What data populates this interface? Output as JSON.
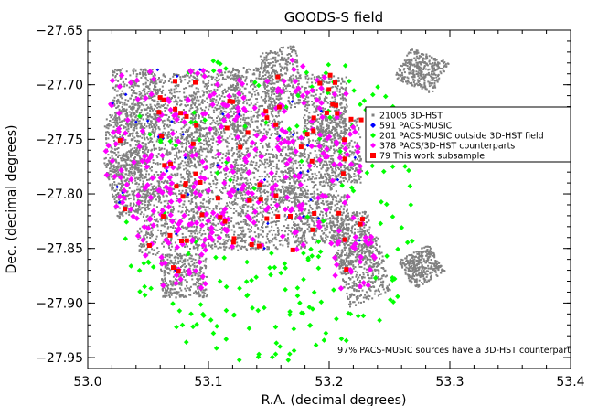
{
  "chart_data": {
    "type": "scatter",
    "title": "GOODS-S field",
    "xlabel": "R.A. (decimal degrees)",
    "ylabel": "Dec. (decimal degrees)",
    "xlim": [
      53.0,
      53.4
    ],
    "ylim": [
      -27.96,
      -27.65
    ],
    "x_reversed": false,
    "x_major_ticks": [
      53.0,
      53.1,
      53.2,
      53.3,
      53.4
    ],
    "x_tick_labels": [
      "53.0",
      "53.1",
      "53.2",
      "53.3",
      "53.4"
    ],
    "y_major_ticks": [
      -27.65,
      -27.7,
      -27.75,
      -27.8,
      -27.85,
      -27.9,
      -27.95
    ],
    "y_tick_labels": [
      "−27.65",
      "−27.70",
      "−27.75",
      "−27.80",
      "−27.85",
      "−27.90",
      "−27.95"
    ],
    "grid": false,
    "legend_position": "right",
    "series": [
      {
        "name": "21005 3D-HST",
        "color": "#808080",
        "marker": "dot",
        "count": 21005
      },
      {
        "name": "591 PACS-MUSIC",
        "color": "#0000ff",
        "marker": "diamond",
        "count": 591
      },
      {
        "name": "201 PACS-MUSIC outside 3D-HST field",
        "color": "#00ff00",
        "marker": "diamond",
        "count": 201
      },
      {
        "name": "378 PACS/3D-HST counterparts",
        "color": "#ff00ff",
        "marker": "diamond",
        "count": 378
      },
      {
        "name": "79 This work subsample",
        "color": "#ff0000",
        "marker": "square",
        "count": 79
      }
    ],
    "fields_3dhst": [
      {
        "corners": [
          [
            53.013,
            -27.73
          ],
          [
            53.045,
            -27.715
          ],
          [
            53.051,
            -27.776
          ],
          [
            53.019,
            -27.792
          ]
        ]
      },
      {
        "corners": [
          [
            53.02,
            -27.685
          ],
          [
            53.058,
            -27.686
          ],
          [
            53.06,
            -27.742
          ],
          [
            53.022,
            -27.741
          ]
        ]
      },
      {
        "corners": [
          [
            53.048,
            -27.69
          ],
          [
            53.092,
            -27.69
          ],
          [
            53.094,
            -27.752
          ],
          [
            53.05,
            -27.752
          ]
        ]
      },
      {
        "corners": [
          [
            53.085,
            -27.686
          ],
          [
            53.125,
            -27.686
          ],
          [
            53.126,
            -27.742
          ],
          [
            53.086,
            -27.742
          ]
        ]
      },
      {
        "corners": [
          [
            53.118,
            -27.684
          ],
          [
            53.16,
            -27.684
          ],
          [
            53.161,
            -27.745
          ],
          [
            53.119,
            -27.745
          ]
        ]
      },
      {
        "corners": [
          [
            53.142,
            -27.672
          ],
          [
            53.172,
            -27.662
          ],
          [
            53.18,
            -27.718
          ],
          [
            53.15,
            -27.727
          ]
        ]
      },
      {
        "corners": [
          [
            53.18,
            -27.69
          ],
          [
            53.216,
            -27.693
          ],
          [
            53.214,
            -27.748
          ],
          [
            53.178,
            -27.745
          ]
        ]
      },
      {
        "corners": [
          [
            53.013,
            -27.768
          ],
          [
            53.04,
            -27.757
          ],
          [
            53.052,
            -27.812
          ],
          [
            53.025,
            -27.823
          ]
        ]
      },
      {
        "corners": [
          [
            53.04,
            -27.745
          ],
          [
            53.088,
            -27.745
          ],
          [
            53.09,
            -27.803
          ],
          [
            53.042,
            -27.803
          ]
        ]
      },
      {
        "corners": [
          [
            53.08,
            -27.742
          ],
          [
            53.13,
            -27.742
          ],
          [
            53.132,
            -27.8
          ],
          [
            53.082,
            -27.8
          ]
        ]
      },
      {
        "corners": [
          [
            53.12,
            -27.745
          ],
          [
            53.17,
            -27.745
          ],
          [
            53.172,
            -27.806
          ],
          [
            53.122,
            -27.806
          ]
        ]
      },
      {
        "corners": [
          [
            53.16,
            -27.742
          ],
          [
            53.205,
            -27.742
          ],
          [
            53.207,
            -27.804
          ],
          [
            53.162,
            -27.804
          ]
        ]
      },
      {
        "corners": [
          [
            53.19,
            -27.73
          ],
          [
            53.225,
            -27.73
          ],
          [
            53.228,
            -27.79
          ],
          [
            53.193,
            -27.79
          ]
        ]
      },
      {
        "corners": [
          [
            53.04,
            -27.792
          ],
          [
            53.09,
            -27.792
          ],
          [
            53.092,
            -27.857
          ],
          [
            53.042,
            -27.857
          ]
        ]
      },
      {
        "corners": [
          [
            53.085,
            -27.795
          ],
          [
            53.13,
            -27.795
          ],
          [
            53.132,
            -27.852
          ],
          [
            53.087,
            -27.852
          ]
        ]
      },
      {
        "corners": [
          [
            53.125,
            -27.795
          ],
          [
            53.18,
            -27.795
          ],
          [
            53.182,
            -27.852
          ],
          [
            53.127,
            -27.852
          ]
        ]
      },
      {
        "corners": [
          [
            53.17,
            -27.8
          ],
          [
            53.215,
            -27.8
          ],
          [
            53.217,
            -27.845
          ],
          [
            53.172,
            -27.845
          ]
        ]
      },
      {
        "corners": [
          [
            53.2,
            -27.82
          ],
          [
            53.232,
            -27.815
          ],
          [
            53.238,
            -27.862
          ],
          [
            53.206,
            -27.867
          ]
        ]
      },
      {
        "corners": [
          [
            53.205,
            -27.855
          ],
          [
            53.24,
            -27.838
          ],
          [
            53.252,
            -27.888
          ],
          [
            53.217,
            -27.905
          ]
        ]
      },
      {
        "corners": [
          [
            53.06,
            -27.855
          ],
          [
            53.098,
            -27.855
          ],
          [
            53.099,
            -27.895
          ],
          [
            53.061,
            -27.895
          ]
        ]
      },
      {
        "corners": [
          [
            53.268,
            -27.666
          ],
          [
            53.3,
            -27.68
          ],
          [
            53.285,
            -27.708
          ],
          [
            53.253,
            -27.694
          ]
        ]
      },
      {
        "corners": [
          [
            53.257,
            -27.862
          ],
          [
            53.282,
            -27.846
          ],
          [
            53.296,
            -27.871
          ],
          [
            53.271,
            -27.888
          ]
        ]
      }
    ],
    "footnote": "97% PACS-MUSIC sources have a 3D-HST counterpart"
  }
}
